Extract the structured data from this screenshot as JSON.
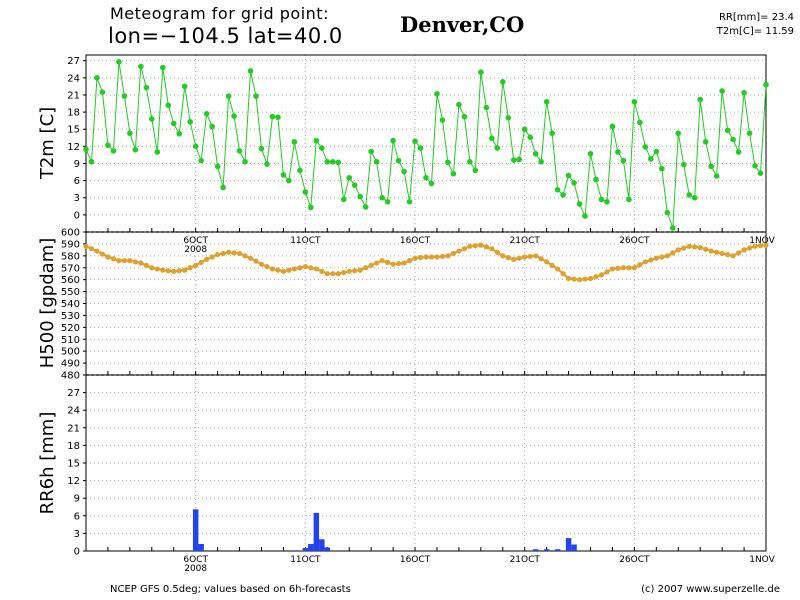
{
  "header": {
    "line1": "Meteogram for grid point:",
    "line2": "lon=−104.5 lat=40.0",
    "location": "Denver,CO",
    "rr_label": "RR[mm]=",
    "rr_value": "23.4",
    "t2m_label": "T2m[C]=",
    "t2m_value": "11.59"
  },
  "footer": {
    "left": "NCEP GFS 0.5deg; values based on 6h-forecasts",
    "right": "(c) 2007 www.superzelle.de"
  },
  "x_axis": {
    "date_ticks": [
      "6OCT",
      "11OCT",
      "16OCT",
      "21OCT",
      "26OCT",
      "1NOV"
    ],
    "year_label": "2008"
  },
  "colors": {
    "t2m": "#22cc22",
    "h500": "#e0a030",
    "rr6h": "#2244ee",
    "grid": "#aaaaaa"
  },
  "chart_data": [
    {
      "type": "line",
      "ylabel": "T2m [C]",
      "ylim": [
        -3,
        28
      ],
      "yticks": [
        "0",
        "3",
        "6",
        "9",
        "12",
        "15",
        "18",
        "21",
        "24",
        "27"
      ],
      "series": [
        {
          "values": [
            11.5,
            9.3,
            24,
            21.5,
            12.2,
            11.2,
            26.8,
            20.8,
            14.3,
            11.4,
            26,
            22.3,
            16.8,
            11,
            25.8,
            19.2,
            16,
            14.2,
            22.5,
            16.3,
            12,
            9.5,
            17.7,
            15.5,
            8.5,
            4.8,
            20.8,
            17.3,
            11.2,
            9.3,
            25.2,
            20.8,
            11.6,
            8.9,
            17.2,
            17.1,
            7,
            6,
            12.8,
            7.8,
            4,
            1.3,
            13,
            11.7,
            9.3,
            9.3,
            9.2,
            2.7,
            6.5,
            5.2,
            3.2,
            1.4,
            11.1,
            9.3,
            3,
            2.3,
            13,
            9.5,
            7.6,
            2.3,
            12.9,
            11.7,
            6.5,
            5.5,
            21.2,
            16.6,
            9.2,
            7.2,
            19.3,
            17.2,
            9.3,
            7.8,
            25,
            18.8,
            13.4,
            11.7,
            23.3,
            17,
            9.6,
            9.7,
            15,
            13.6,
            10.7,
            9.3,
            19.8,
            14.3,
            4.4,
            3.5,
            6.9,
            5.6,
            1.9,
            -0.2,
            10.7,
            6.2,
            2.7,
            2.3,
            15.5,
            11,
            9.5,
            2.7,
            19.8,
            16.2,
            11.9,
            9.8,
            11.1,
            8.1,
            0.4,
            -2.3,
            14.3,
            8.8,
            3.5,
            3,
            20.2,
            12.8,
            8.5,
            6.8,
            21.7,
            14.8,
            13.2,
            11,
            21.4,
            14.3,
            8.6,
            7.3,
            22.8
          ]
        }
      ]
    },
    {
      "type": "line",
      "ylabel": "H500 [gpdam]",
      "ylim": [
        480,
        600
      ],
      "yticks": [
        "480",
        "490",
        "500",
        "510",
        "520",
        "530",
        "540",
        "550",
        "560",
        "570",
        "580",
        "590",
        "600"
      ],
      "series": [
        {
          "keypoints": [
            {
              "x": 0,
              "y": 588
            },
            {
              "x": 2,
              "y": 584
            },
            {
              "x": 4,
              "y": 579
            },
            {
              "x": 6,
              "y": 576
            },
            {
              "x": 8,
              "y": 576
            },
            {
              "x": 10,
              "y": 574
            },
            {
              "x": 12,
              "y": 570
            },
            {
              "x": 14,
              "y": 568
            },
            {
              "x": 16,
              "y": 567
            },
            {
              "x": 18,
              "y": 568
            },
            {
              "x": 20,
              "y": 572
            },
            {
              "x": 22,
              "y": 577
            },
            {
              "x": 24,
              "y": 581
            },
            {
              "x": 26,
              "y": 583
            },
            {
              "x": 28,
              "y": 582
            },
            {
              "x": 30,
              "y": 578
            },
            {
              "x": 32,
              "y": 573
            },
            {
              "x": 34,
              "y": 569
            },
            {
              "x": 36,
              "y": 567
            },
            {
              "x": 38,
              "y": 569
            },
            {
              "x": 40,
              "y": 571
            },
            {
              "x": 42,
              "y": 569
            },
            {
              "x": 44,
              "y": 565
            },
            {
              "x": 46,
              "y": 565
            },
            {
              "x": 48,
              "y": 567
            },
            {
              "x": 50,
              "y": 568
            },
            {
              "x": 52,
              "y": 572
            },
            {
              "x": 54,
              "y": 576
            },
            {
              "x": 56,
              "y": 573
            },
            {
              "x": 58,
              "y": 574
            },
            {
              "x": 60,
              "y": 578
            },
            {
              "x": 62,
              "y": 579
            },
            {
              "x": 64,
              "y": 579
            },
            {
              "x": 66,
              "y": 580
            },
            {
              "x": 68,
              "y": 584
            },
            {
              "x": 70,
              "y": 588
            },
            {
              "x": 72,
              "y": 589
            },
            {
              "x": 74,
              "y": 586
            },
            {
              "x": 76,
              "y": 580
            },
            {
              "x": 78,
              "y": 577
            },
            {
              "x": 80,
              "y": 579
            },
            {
              "x": 82,
              "y": 580
            },
            {
              "x": 84,
              "y": 575
            },
            {
              "x": 86,
              "y": 569
            },
            {
              "x": 88,
              "y": 561
            },
            {
              "x": 90,
              "y": 560
            },
            {
              "x": 92,
              "y": 561
            },
            {
              "x": 94,
              "y": 564
            },
            {
              "x": 96,
              "y": 569
            },
            {
              "x": 98,
              "y": 570
            },
            {
              "x": 100,
              "y": 570
            },
            {
              "x": 102,
              "y": 575
            },
            {
              "x": 104,
              "y": 578
            },
            {
              "x": 106,
              "y": 580
            },
            {
              "x": 108,
              "y": 585
            },
            {
              "x": 110,
              "y": 588
            },
            {
              "x": 112,
              "y": 587
            },
            {
              "x": 114,
              "y": 584
            },
            {
              "x": 116,
              "y": 582
            },
            {
              "x": 118,
              "y": 580
            },
            {
              "x": 120,
              "y": 585
            },
            {
              "x": 122,
              "y": 588
            },
            {
              "x": 124,
              "y": 589
            }
          ]
        }
      ]
    },
    {
      "type": "bar",
      "ylabel": "RR6h [mm]",
      "ylim": [
        0,
        30
      ],
      "yticks": [
        "0",
        "3",
        "6",
        "9",
        "12",
        "15",
        "18",
        "21",
        "24",
        "27"
      ],
      "series": [
        {
          "bars": [
            {
              "x": 20,
              "y": 7.1
            },
            {
              "x": 21,
              "y": 1.2
            },
            {
              "x": 40,
              "y": 0.5
            },
            {
              "x": 41,
              "y": 1.2
            },
            {
              "x": 42,
              "y": 6.5
            },
            {
              "x": 43,
              "y": 2.0
            },
            {
              "x": 44,
              "y": 0.6
            },
            {
              "x": 82,
              "y": 0.3
            },
            {
              "x": 84,
              "y": 0.3
            },
            {
              "x": 86,
              "y": 0.3
            },
            {
              "x": 88,
              "y": 2.2
            },
            {
              "x": 89,
              "y": 1.1
            }
          ]
        }
      ]
    }
  ]
}
